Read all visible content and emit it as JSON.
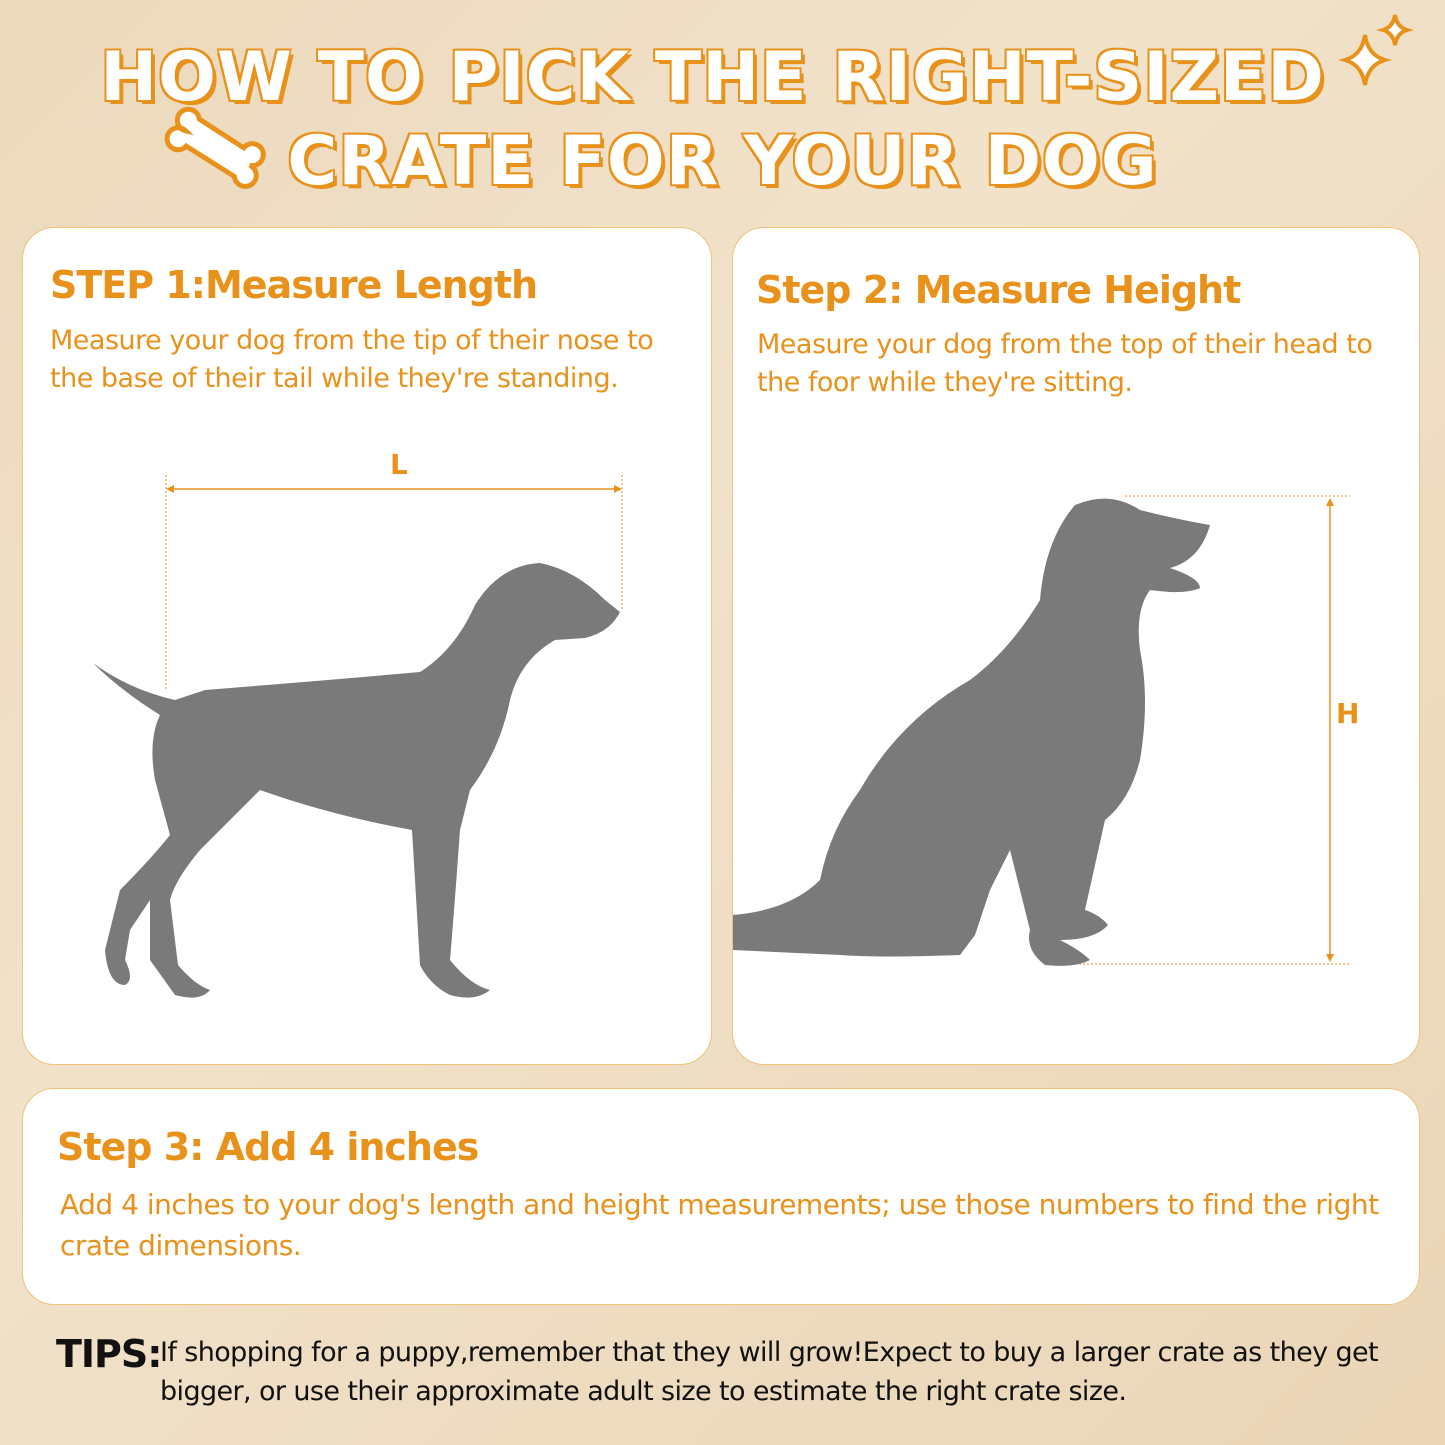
{
  "title": {
    "line1": "HOW TO PICK THE RIGHT-SIZED",
    "line2": "CRATE FOR YOUR DOG"
  },
  "icons": {
    "sparkle": "sparkle-icon",
    "bone": "bone-icon"
  },
  "colors": {
    "accent": "#e8921c",
    "silhouette": "#7a7a7a",
    "background": "#efdcc0"
  },
  "step1": {
    "heading": "STEP 1:Measure Length",
    "text": "Measure your dog from the tip of their nose to the base of their tail while they're standing.",
    "label": "L"
  },
  "step2": {
    "heading": "Step 2: Measure Height",
    "text": "Measure your dog from the top of their head to the foor while they're sitting.",
    "label": "H"
  },
  "step3": {
    "heading": "Step 3: Add 4 inches",
    "text": "Add 4 inches to your dog's length and height measurements; use those numbers to find the right crate dimensions."
  },
  "tips": {
    "label": "TIPS:",
    "text": "If shopping for a puppy,remember that they will grow!Expect to buy a larger crate as they get bigger, or use their approximate adult size to estimate the right crate size."
  }
}
